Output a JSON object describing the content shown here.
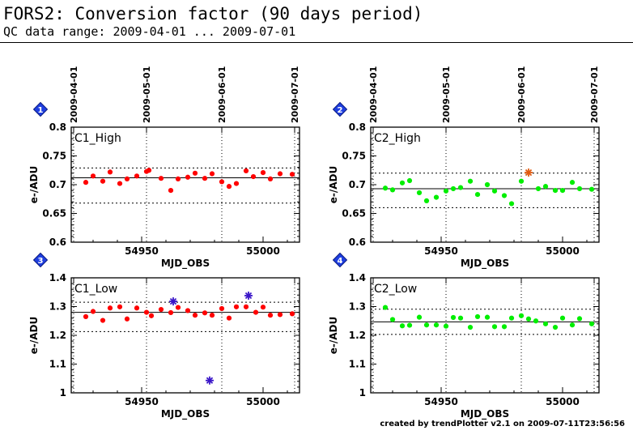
{
  "header": {
    "title": "FORS2: Conversion factor (90 days period)",
    "subtitle": "QC data range: 2009-04-01 ... 2009-07-01"
  },
  "footer": "created by trendPlotter v2.1 on 2009-07-11T23:56:56",
  "colors": {
    "red": "#ff0000",
    "green": "#00ee00",
    "outlier_orange": "#e05a10",
    "outlier_purple": "#3a16c8",
    "badge_blue": "#1f3fe0"
  },
  "chart_data": [
    {
      "type": "scatter",
      "badge": "1",
      "label": "C1_High",
      "xlabel": "MJD_OBS",
      "ylabel": "e-/ADU",
      "xlim": [
        54921,
        55015
      ],
      "ylim": [
        0.6,
        0.8
      ],
      "yticks": [
        "0.6",
        "0.65",
        "0.7",
        "0.75",
        "0.8"
      ],
      "xticks": [
        "54950",
        "55000"
      ],
      "date_ticks": [
        "2009-04-01",
        "2009-05-01",
        "2009-06-01",
        "2009-07-01"
      ],
      "date_ticks_mjd": [
        54922,
        54952,
        54983,
        55013
      ],
      "mean": 0.712,
      "limits": [
        0.668,
        0.729
      ],
      "marker_color": "#ff0000",
      "x": [
        54927,
        54930,
        54934,
        54937,
        54941,
        54944,
        54948,
        54952,
        54953,
        54958,
        54962,
        54965,
        54969,
        54972,
        54976,
        54979,
        54983,
        54986,
        54989,
        54993,
        54996,
        55000,
        55003,
        55007,
        55012
      ],
      "y": [
        0.704,
        0.715,
        0.706,
        0.722,
        0.702,
        0.71,
        0.715,
        0.723,
        0.725,
        0.711,
        0.69,
        0.71,
        0.713,
        0.72,
        0.711,
        0.719,
        0.705,
        0.697,
        0.702,
        0.724,
        0.714,
        0.721,
        0.71,
        0.719,
        0.718
      ],
      "outliers": []
    },
    {
      "type": "scatter",
      "badge": "2",
      "label": "C2_High",
      "xlabel": "MJD_OBS",
      "ylabel": "e-/ADU",
      "xlim": [
        54921,
        55015
      ],
      "ylim": [
        0.6,
        0.8
      ],
      "yticks": [
        "0.6",
        "0.65",
        "0.7",
        "0.75",
        "0.8"
      ],
      "xticks": [
        "54950",
        "55000"
      ],
      "date_ticks": [
        "2009-04-01",
        "2009-05-01",
        "2009-06-01",
        "2009-07-01"
      ],
      "date_ticks_mjd": [
        54922,
        54952,
        54983,
        55013
      ],
      "mean": 0.693,
      "limits": [
        0.66,
        0.72
      ],
      "marker_color": "#00ee00",
      "x": [
        54927,
        54930,
        54934,
        54937,
        54941,
        54944,
        54948,
        54952,
        54955,
        54958,
        54962,
        54965,
        54969,
        54972,
        54976,
        54979,
        54983,
        54990,
        54993,
        54997,
        55000,
        55004,
        55007,
        55012
      ],
      "y": [
        0.694,
        0.691,
        0.703,
        0.707,
        0.686,
        0.672,
        0.678,
        0.689,
        0.693,
        0.695,
        0.706,
        0.683,
        0.7,
        0.689,
        0.681,
        0.667,
        0.706,
        0.693,
        0.697,
        0.69,
        0.69,
        0.704,
        0.693,
        0.692
      ],
      "outliers": [
        {
          "x": 54986,
          "y": 0.721,
          "color": "#e05a10"
        }
      ]
    },
    {
      "type": "scatter",
      "badge": "3",
      "label": "C1_Low",
      "xlabel": "MJD_OBS",
      "ylabel": "e-/ADU",
      "xlim": [
        54921,
        55015
      ],
      "ylim": [
        1.0,
        1.4
      ],
      "yticks": [
        "1",
        "1.1",
        "1.2",
        "1.3",
        "1.4"
      ],
      "xticks": [
        "54950",
        "55000"
      ],
      "date_ticks": [],
      "date_ticks_mjd": [
        54922,
        54952,
        54983,
        55013
      ],
      "mean": 1.28,
      "limits": [
        1.213,
        1.315
      ],
      "marker_color": "#ff0000",
      "x": [
        54927,
        54930,
        54934,
        54937,
        54941,
        54944,
        54948,
        54952,
        54954,
        54958,
        54962,
        54965,
        54969,
        54972,
        54976,
        54979,
        54983,
        54986,
        54989,
        54993,
        54997,
        55000,
        55003,
        55007,
        55012
      ],
      "y": [
        1.265,
        1.283,
        1.252,
        1.295,
        1.299,
        1.257,
        1.295,
        1.28,
        1.268,
        1.29,
        1.279,
        1.297,
        1.286,
        1.27,
        1.278,
        1.27,
        1.293,
        1.26,
        1.299,
        1.299,
        1.28,
        1.298,
        1.27,
        1.272,
        1.275
      ],
      "outliers": [
        {
          "x": 54963,
          "y": 1.318,
          "color": "#3a16c8"
        },
        {
          "x": 54978,
          "y": 1.043,
          "color": "#3a16c8"
        },
        {
          "x": 54994,
          "y": 1.338,
          "color": "#3a16c8"
        }
      ]
    },
    {
      "type": "scatter",
      "badge": "4",
      "label": "C2_Low",
      "xlabel": "MJD_OBS",
      "ylabel": "e-/ADU",
      "xlim": [
        54921,
        55015
      ],
      "ylim": [
        1.0,
        1.4
      ],
      "yticks": [
        "1",
        "1.1",
        "1.2",
        "1.3",
        "1.4"
      ],
      "xticks": [
        "54950",
        "55000"
      ],
      "date_ticks": [],
      "date_ticks_mjd": [
        54922,
        54952,
        54983,
        55013
      ],
      "mean": 1.247,
      "limits": [
        1.203,
        1.291
      ],
      "marker_color": "#00ee00",
      "x": [
        54927,
        54930,
        54934,
        54937,
        54941,
        54944,
        54948,
        54952,
        54955,
        54958,
        54962,
        54965,
        54969,
        54972,
        54976,
        54979,
        54983,
        54986,
        54989,
        54993,
        54997,
        55000,
        55004,
        55007,
        55012
      ],
      "y": [
        1.297,
        1.255,
        1.233,
        1.235,
        1.263,
        1.236,
        1.236,
        1.232,
        1.262,
        1.26,
        1.228,
        1.265,
        1.263,
        1.23,
        1.23,
        1.26,
        1.268,
        1.257,
        1.25,
        1.24,
        1.228,
        1.26,
        1.236,
        1.258,
        1.24
      ],
      "outliers": []
    }
  ]
}
